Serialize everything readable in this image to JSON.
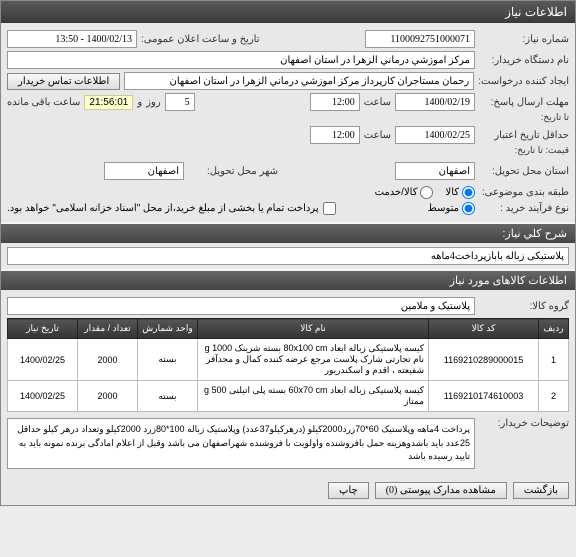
{
  "window": {
    "title": "اطلاعات نیاز"
  },
  "header": {
    "need_no_label": "شماره نیاز:",
    "need_no": "1100092751000071",
    "announce_label": "تاریخ و ساعت اعلان عمومی:",
    "announce_value": "1400/02/13 - 13:50",
    "buyer_name_label": "نام دستگاه خریدار:",
    "buyer_name": "مرکز آموزشي درماني الزهرا در استان اصفهان",
    "creator_label": "ایجاد کننده درخواست:",
    "creator": "رحمان مستاجران کارپرداز مرکز آموزشي درماني الزهرا در استان اصفهان",
    "contact_btn": "اطلاعات تماس خریدار",
    "deadline_reply_label": "مهلت ارسال پاسخ:",
    "deadline_reply_to": "تا تاریخ:",
    "deadline_date": "1400/02/19",
    "hour_label": "ساعت",
    "deadline_hour": "12:00",
    "and_label": "و",
    "day_label": "روز",
    "day_val": "5",
    "timer": "21:56:01",
    "remaining": "ساعت باقی مانده",
    "validity_label": "حداقل تاریخ اعتبار",
    "validity_to": "قیمت: تا تاریخ:",
    "validity_date": "1400/02/25",
    "validity_hour": "12:00",
    "province_deliver_label": "استان محل تحویل:",
    "province_deliver": "اصفهان",
    "city_deliver_label": "شهر محل تحویل:",
    "city_deliver": "اصفهان",
    "budget_type_label": "طبقه بندی موضوعی:",
    "budget_goods": "کالا",
    "budget_service": "کالا/خدمت",
    "process_type_label": "نوع فرآیند خرید :",
    "process_medium": "متوسط",
    "payment_note": "پرداخت تمام یا بخشی از مبلغ خرید،از محل \"اسناد خزانه اسلامی\" خواهد بود."
  },
  "need_title": {
    "section": "شرح کلي نیاز:",
    "value": "پلاستیکی زباله بابازپرداخت4ماهه"
  },
  "items_section": "اطلاعات کالاهای مورد نیاز",
  "group": {
    "label": "گروه کالا:",
    "value": "پلاستیک و ملامین"
  },
  "table": {
    "cols": [
      "ردیف",
      "کد کالا",
      "نام کالا",
      "واحد شمارش",
      "تعداد / مقدار",
      "تاریخ نیاز"
    ],
    "rows": [
      {
        "n": "1",
        "code": "1169210289000015",
        "name": "کیسه پلاستیکی زباله ابعاد 80x100 cm بسته شرینک 1000 g نام تجارتی شارک پلاست مرجع عرضه کننده کمال و مجدآفر شفیعته ، اقدم و اسکندریور",
        "unit": "بسته",
        "qty": "2000",
        "date": "1400/02/25"
      },
      {
        "n": "2",
        "code": "1169210174610003",
        "name": "کیسه پلاستیکی زباله ابعاد 60x70 cm بسته پلی اتیلنی 500 g ممتاز",
        "unit": "بسته",
        "qty": "2000",
        "date": "1400/02/25"
      }
    ]
  },
  "buyer_desc": {
    "label": "توضیحات خریدار:",
    "text": "پرداخت 4ماهه وپلاستیک 60*70زرد2000کیلو (درهرکیلو37عدد) وپلاستیک زباله 100*80زرد 2000کیلو وتعداد درهر کیلو حداقل 25عدد باید باشدوهزینه حمل بافروشنده واولویت با فروشنده شهراصفهان می باشد وقبل از اعلام امادگی برنده نمونه باید به تایید رسیده باشد"
  },
  "footer": {
    "print": "چاپ",
    "attach": "مشاهده مدارک پیوستی (0)",
    "back": "بازگشت"
  }
}
